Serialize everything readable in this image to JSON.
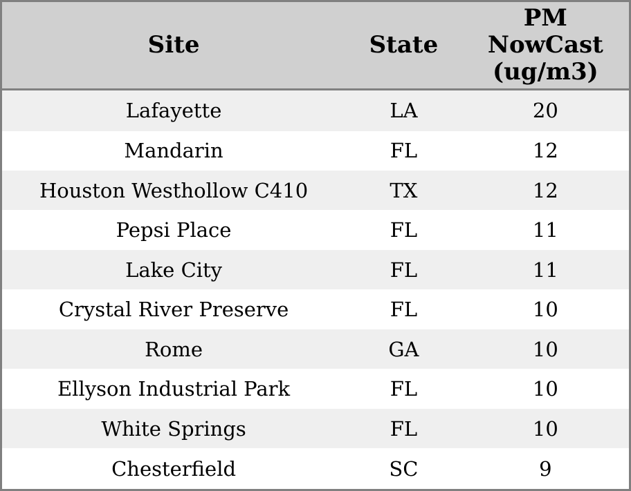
{
  "chart_data": {
    "type": "table",
    "columns": [
      "Site",
      "State",
      "PM NowCast (ug/m3)"
    ],
    "rows": [
      [
        "Lafayette",
        "LA",
        20
      ],
      [
        "Mandarin",
        "FL",
        12
      ],
      [
        "Houston Westhollow C410",
        "TX",
        12
      ],
      [
        "Pepsi Place",
        "FL",
        11
      ],
      [
        "Lake City",
        "FL",
        11
      ],
      [
        "Crystal River Preserve",
        "FL",
        10
      ],
      [
        "Rome",
        "GA",
        10
      ],
      [
        "Ellyson Industrial Park",
        "FL",
        10
      ],
      [
        "White Springs",
        "FL",
        10
      ],
      [
        "Chesterfield",
        "SC",
        9
      ]
    ]
  },
  "header": {
    "site": "Site",
    "state": "State",
    "pm": "PM\nNowCast\n(ug/m3)"
  },
  "colors": {
    "header_bg": "#d0d0d0",
    "stripe_row_bg": "#efefef",
    "plain_row_bg": "#ffffff",
    "border": "#808080",
    "text": "#000000"
  }
}
